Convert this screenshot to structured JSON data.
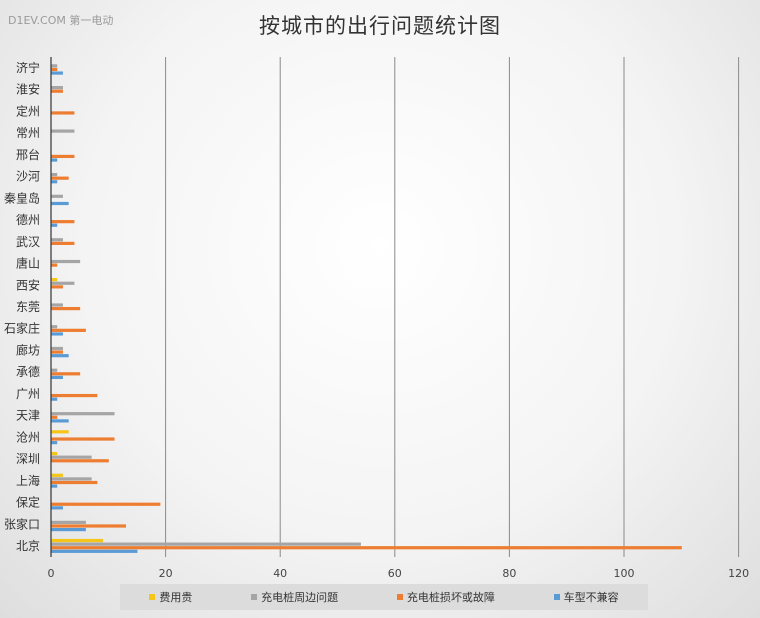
{
  "watermark": "D1EV.COM 第一电动",
  "chart_data": {
    "type": "bar",
    "orientation": "horizontal",
    "title": "按城市的出行问题统计图",
    "categories": [
      "济宁",
      "淮安",
      "定州",
      "常州",
      "邢台",
      "沙河",
      "秦皇岛",
      "德州",
      "武汉",
      "唐山",
      "西安",
      "东莞",
      "石家庄",
      "廊坊",
      "承德",
      "广州",
      "天津",
      "沧州",
      "深圳",
      "上海",
      "保定",
      "张家口",
      "北京"
    ],
    "series": [
      {
        "name": "费用贵",
        "color": "#f5c518",
        "values": [
          0,
          0,
          0,
          0,
          0,
          0,
          0,
          0,
          0,
          0,
          1,
          0,
          0,
          0,
          0,
          0,
          0,
          3,
          1,
          2,
          0,
          0,
          9
        ]
      },
      {
        "name": "充电桩周边问题",
        "color": "#a5a5a5",
        "values": [
          1,
          2,
          0,
          4,
          0,
          1,
          2,
          0,
          2,
          5,
          4,
          2,
          1,
          2,
          1,
          0,
          11,
          0,
          7,
          7,
          0,
          6,
          54
        ]
      },
      {
        "name": "充电桩损坏或故障",
        "color": "#ed7d31",
        "values": [
          1,
          2,
          4,
          0,
          4,
          3,
          0,
          4,
          4,
          1,
          2,
          5,
          6,
          2,
          5,
          8,
          1,
          11,
          10,
          8,
          19,
          13,
          110
        ]
      },
      {
        "name": "车型不兼容",
        "color": "#5b9bd5",
        "values": [
          2,
          0,
          0,
          0,
          1,
          1,
          3,
          1,
          0,
          0,
          0,
          0,
          2,
          3,
          2,
          1,
          3,
          1,
          0,
          1,
          2,
          6,
          15
        ]
      }
    ],
    "xlim": [
      0,
      120
    ],
    "xticks": [
      "0",
      "20",
      "40",
      "60",
      "80",
      "100",
      "120"
    ],
    "grid": true,
    "legend_position": "bottom"
  }
}
